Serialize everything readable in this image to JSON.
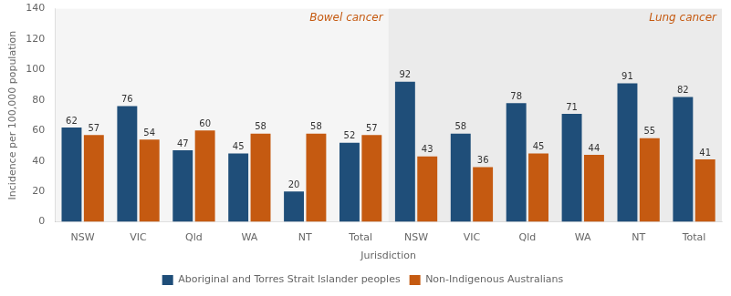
{
  "chart_data": {
    "type": "bar",
    "xlabel": "Jurisdiction",
    "ylabel": "Incidence per 100,000 population",
    "categories": [
      "NSW",
      "VIC",
      "Qld",
      "WA",
      "NT",
      "Total",
      "NSW",
      "VIC",
      "Qld",
      "WA",
      "NT",
      "Total"
    ],
    "series": [
      {
        "name": "Aboriginal and Torres Strait Islander peoples",
        "color": "#1F4E79",
        "values": [
          62,
          76,
          47,
          45,
          20,
          52,
          92,
          58,
          78,
          71,
          91,
          82
        ]
      },
      {
        "name": "Non-Indigenous Australians",
        "color": "#C55A11",
        "values": [
          57,
          54,
          60,
          58,
          58,
          57,
          43,
          36,
          45,
          44,
          55,
          41
        ]
      }
    ],
    "ylim": [
      0,
      140
    ],
    "yticks": [
      0,
      20,
      40,
      60,
      80,
      100,
      120,
      140
    ],
    "grid": false,
    "legend": "bottom",
    "data_labels": true,
    "annotations": [
      {
        "text": "Bowel cancer",
        "color": "#C55A11"
      },
      {
        "text": "Lung cancer",
        "color": "#C55A11"
      }
    ]
  }
}
